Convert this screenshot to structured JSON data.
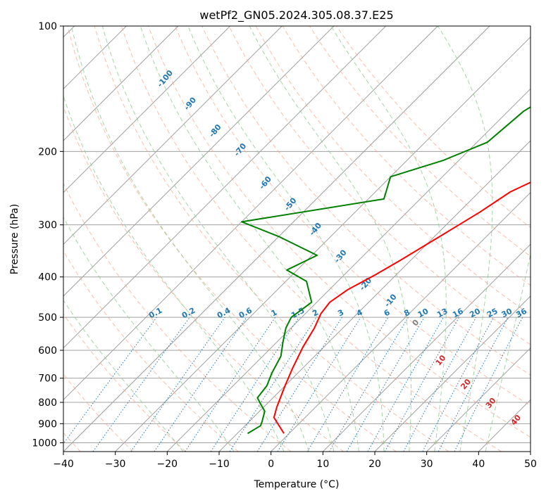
{
  "chart_data": {
    "type": "line",
    "title": "wetPf2_GN05.2024.305.08.37.E25",
    "xlabel": "Temperature (°C)",
    "ylabel": "Pressure (hPa)",
    "xlim": [
      -40,
      50
    ],
    "ylim": [
      1050,
      100
    ],
    "y_scale": "log",
    "x_ticks": [
      -40,
      -30,
      -20,
      -10,
      0,
      10,
      20,
      30,
      40,
      50
    ],
    "y_ticks": [
      100,
      200,
      300,
      400,
      500,
      600,
      700,
      800,
      900,
      1000
    ],
    "grid": true,
    "skew_t": true,
    "series": [
      {
        "color": "#ff0000",
        "points": [
          [
            -1,
            950
          ],
          [
            -6,
            870
          ],
          [
            -7.5,
            820
          ],
          [
            -10,
            730
          ],
          [
            -12,
            660
          ],
          [
            -14,
            590
          ],
          [
            -15.5,
            530
          ],
          [
            -17,
            490
          ],
          [
            -17.5,
            460
          ],
          [
            -16.5,
            430
          ],
          [
            -14,
            395
          ],
          [
            -12,
            365
          ],
          [
            -9,
            320
          ],
          [
            -6,
            280
          ],
          [
            -4,
            250
          ],
          [
            1,
            220
          ],
          [
            4,
            190
          ],
          [
            10,
            160
          ],
          [
            20,
            140
          ],
          [
            35,
            120
          ],
          [
            47,
            100
          ]
        ]
      },
      {
        "color": "#008000",
        "points": [
          [
            -8,
            950
          ],
          [
            -7,
            910
          ],
          [
            -7.5,
            890
          ],
          [
            -9,
            840
          ],
          [
            -11,
            810
          ],
          [
            -13,
            780
          ],
          [
            -13.5,
            730
          ],
          [
            -15,
            680
          ],
          [
            -16.5,
            620
          ],
          [
            -19,
            570
          ],
          [
            -21,
            530
          ],
          [
            -22,
            500
          ],
          [
            -21,
            460
          ],
          [
            -26,
            410
          ],
          [
            -32,
            385
          ],
          [
            -29,
            355
          ],
          [
            -40,
            320
          ],
          [
            -50,
            295
          ],
          [
            -27,
            260
          ],
          [
            -30,
            230
          ],
          [
            -23,
            210
          ],
          [
            -18,
            190
          ],
          [
            -17,
            160
          ],
          [
            -14,
            140
          ],
          [
            -9,
            115
          ],
          [
            -6,
            100
          ]
        ]
      }
    ],
    "dry_adiabats": [
      -100,
      -90,
      -80,
      -70,
      -60,
      -50,
      -40,
      -30,
      -20,
      -10,
      0,
      10,
      20,
      30,
      40,
      50,
      60,
      70,
      80,
      90,
      100,
      110,
      120
    ],
    "moist_adiabats": [
      -20,
      -10,
      0,
      5,
      10,
      15,
      20,
      25,
      30,
      35,
      40
    ],
    "moist_adiabat_labels": [
      "-100",
      "-90",
      "-80",
      "-70",
      "-60",
      "-50",
      "-40",
      "-30",
      "-20",
      "-10",
      "0",
      "10",
      "20",
      "30",
      "40"
    ],
    "mixing_ratios": [
      0.1,
      0.2,
      0.4,
      0.6,
      1,
      1.5,
      2,
      3,
      4,
      6,
      8,
      10,
      13,
      16,
      20,
      25,
      30,
      36
    ],
    "mixing_ratio_labels": [
      "0.1",
      "0.2",
      "0.4",
      "0.6",
      "1",
      "1.5",
      "2",
      "3",
      "4",
      "6",
      "8",
      "10",
      "13",
      "16",
      "20",
      "25",
      "30",
      "36"
    ],
    "colors": {
      "temperature": "#ff0000",
      "dewpoint": "#008000",
      "isotherm": "#a0a0a0",
      "dry_adiabat": "#f7a385",
      "moist_adiabat": "#90c890",
      "mixing_ratio": "#1f77b4",
      "moist_label": "#1f77b4",
      "cold_label": "#1f77b4",
      "warm_label": "#d62728",
      "zero_label": "#808080"
    }
  }
}
